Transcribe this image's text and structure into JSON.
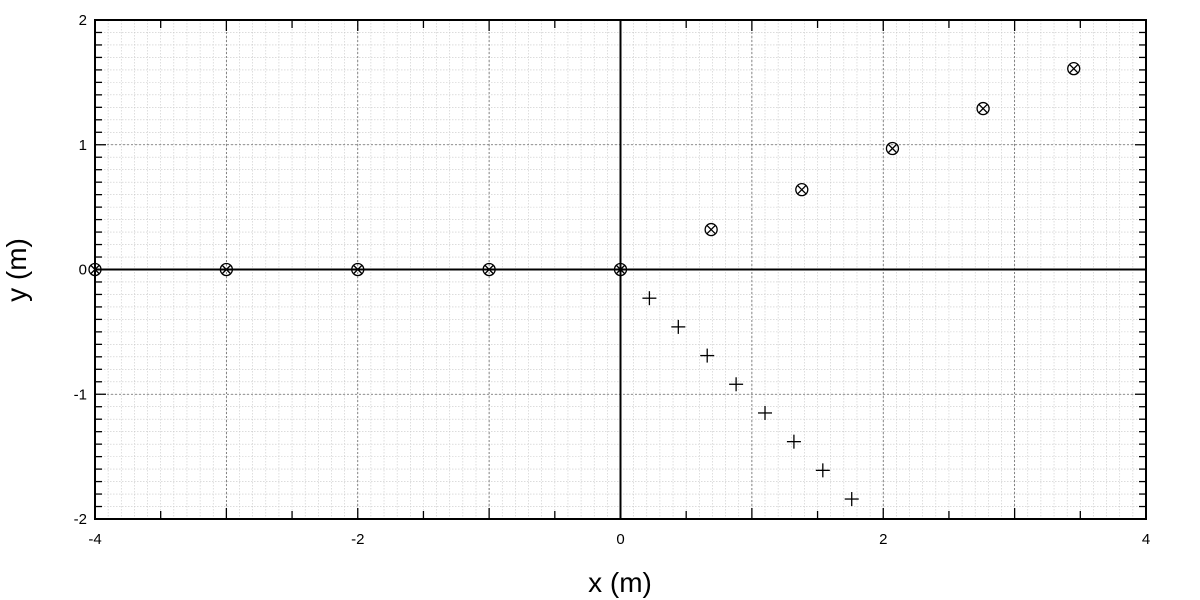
{
  "chart_data": {
    "type": "scatter",
    "xlabel": "x (m)",
    "ylabel": "y (m)",
    "xlim": [
      -4,
      4
    ],
    "ylim": [
      -2,
      2
    ],
    "x_ticks": [
      "-4",
      "-2",
      "0",
      "2",
      "4"
    ],
    "y_ticks": [
      "-2",
      "-1",
      "0",
      "1",
      "2"
    ],
    "grid": true,
    "minor_grid": true,
    "series": [
      {
        "marker": "circle-x",
        "points": [
          [
            -4,
            0
          ],
          [
            -3,
            0
          ],
          [
            -2,
            0
          ],
          [
            -1,
            0
          ],
          [
            0,
            0
          ],
          [
            0.69,
            0.32
          ],
          [
            1.38,
            0.64
          ],
          [
            2.07,
            0.97
          ],
          [
            2.76,
            1.29
          ],
          [
            3.45,
            1.61
          ]
        ]
      },
      {
        "marker": "plus",
        "points": [
          [
            0.22,
            -0.23
          ],
          [
            0.44,
            -0.46
          ],
          [
            0.66,
            -0.69
          ],
          [
            0.88,
            -0.92
          ],
          [
            1.1,
            -1.15
          ],
          [
            1.32,
            -1.38
          ],
          [
            1.54,
            -1.61
          ],
          [
            1.76,
            -1.84
          ]
        ]
      }
    ]
  }
}
